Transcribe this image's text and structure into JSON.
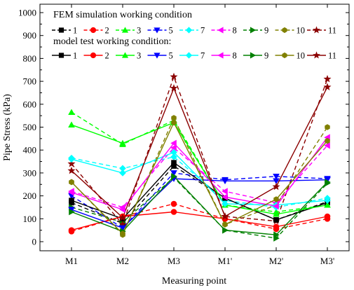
{
  "chart_data": {
    "type": "line",
    "xlabel": "Measuring point",
    "ylabel": "Pipe Stress (kPa)",
    "categories": [
      "M1",
      "M2",
      "M3",
      "M1'",
      "M2'",
      "M3'"
    ],
    "ylim": [
      0,
      1000
    ],
    "yticks": [
      0,
      100,
      200,
      300,
      400,
      500,
      600,
      700,
      800,
      900,
      1000
    ],
    "grid": false,
    "legend": {
      "placement": "top-left",
      "groups": [
        {
          "title": "FEM simulation working condition",
          "dash": "dashed"
        },
        {
          "title": "model test working condition:",
          "dash": "solid"
        }
      ]
    },
    "series": [
      {
        "name": "1",
        "color": "#000000",
        "marker": "square",
        "fem": [
          170,
          80,
          330,
          190,
          95,
          175
        ],
        "test": [
          180,
          100,
          345,
          190,
          95,
          170
        ]
      },
      {
        "name": "2",
        "color": "#ff0000",
        "marker": "circle",
        "fem": [
          45,
          110,
          165,
          100,
          55,
          100
        ],
        "test": [
          50,
          110,
          130,
          100,
          65,
          110
        ]
      },
      {
        "name": "3",
        "color": "#00ff00",
        "marker": "triangle-up",
        "fem": [
          565,
          425,
          530,
          160,
          130,
          160
        ],
        "test": [
          510,
          430,
          520,
          160,
          120,
          160
        ]
      },
      {
        "name": "5",
        "color": "#0000ff",
        "marker": "triangle-down",
        "fem": [
          200,
          60,
          300,
          270,
          285,
          275
        ],
        "test": [
          140,
          60,
          275,
          265,
          265,
          270
        ]
      },
      {
        "name": "7",
        "color": "#00ffff",
        "marker": "diamond",
        "fem": [
          365,
          320,
          370,
          180,
          150,
          190
        ],
        "test": [
          360,
          300,
          390,
          165,
          160,
          180
        ]
      },
      {
        "name": "8",
        "color": "#ff00ff",
        "marker": "triangle-left",
        "fem": [
          220,
          150,
          410,
          220,
          170,
          420
        ],
        "test": [
          215,
          140,
          430,
          195,
          155,
          455
        ]
      },
      {
        "name": "9",
        "color": "#008000",
        "marker": "triangle-right",
        "fem": [
          150,
          85,
          280,
          50,
          15,
          255
        ],
        "test": [
          130,
          45,
          285,
          50,
          30,
          260
        ]
      },
      {
        "name": "10",
        "color": "#808000",
        "marker": "hexagon",
        "fem": [
          260,
          30,
          540,
          75,
          160,
          500
        ],
        "test": [
          260,
          35,
          520,
          75,
          185,
          440
        ]
      },
      {
        "name": "11",
        "color": "#8b0000",
        "marker": "star",
        "fem": [
          340,
          75,
          720,
          110,
          90,
          710
        ],
        "test": [
          310,
          105,
          670,
          110,
          240,
          675
        ]
      }
    ]
  }
}
